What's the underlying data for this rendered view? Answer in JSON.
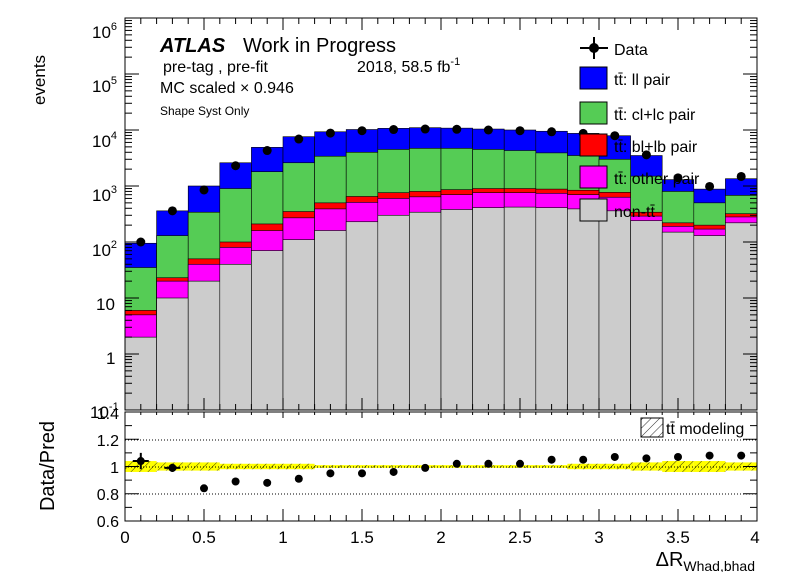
{
  "header": {
    "atlas": "ATLAS",
    "work": "Work in Progress",
    "line2": "pre-tag ,  pre-fit",
    "lumi": "2018, 58.5 fb",
    "lumi_exp": "-1",
    "scale": "MC scaled × 0.946",
    "syst": "Shape Syst Only"
  },
  "axes": {
    "ylabel_top": "events",
    "ylabel_bottom": "Data/Pred",
    "xlabel_main": "ΔR",
    "xlabel_sub": "Whad,bhad"
  },
  "legend": {
    "data": "Data",
    "ll": "tt̄: ll pair",
    "cl": "tt̄: cl+lc pair",
    "bl": "tt̄: bl+lb pair",
    "other": "tt̄: other pair",
    "nontt": "non-tt̄",
    "modeling": "tt̄ modeling"
  },
  "colors": {
    "ll": "#0000ff",
    "cl": "#55cc55",
    "bl": "#ff0000",
    "other": "#ff00ff",
    "nontt": "#cccccc",
    "band": "#ffff00"
  },
  "chart_data": [
    {
      "type": "area",
      "stacked": true,
      "log_y": true,
      "ylabel": "events",
      "ylim": [
        0.1,
        1000000
      ],
      "xlim": [
        0,
        4
      ],
      "y_ticks": [
        "10^-1",
        "1",
        "10",
        "10^2",
        "10^3",
        "10^4",
        "10^5",
        "10^6"
      ],
      "bin_edges": [
        0,
        0.2,
        0.4,
        0.6,
        0.8,
        1.0,
        1.2,
        1.4,
        1.6,
        1.8,
        2.0,
        2.2,
        2.4,
        2.6,
        2.8,
        3.0,
        3.2,
        3.4,
        3.6,
        3.8,
        4.0
      ],
      "series": [
        {
          "name": "non-tt̄",
          "cumulative": [
            2,
            10,
            20,
            40,
            70,
            110,
            160,
            230,
            300,
            340,
            380,
            410,
            420,
            410,
            390,
            360,
            240,
            150,
            130,
            220
          ]
        },
        {
          "name": "tt̄: other pair",
          "cumulative": [
            5,
            20,
            40,
            80,
            160,
            270,
            390,
            510,
            600,
            640,
            700,
            760,
            760,
            740,
            700,
            630,
            290,
            190,
            170,
            280
          ]
        },
        {
          "name": "tt̄: bl+lb pair",
          "cumulative": [
            6,
            23,
            50,
            100,
            210,
            350,
            500,
            650,
            760,
            800,
            860,
            900,
            900,
            880,
            840,
            770,
            340,
            220,
            200,
            320
          ]
        },
        {
          "name": "tt̄: cl+lc pair",
          "cumulative": [
            35,
            130,
            340,
            900,
            1800,
            2600,
            3400,
            4000,
            4500,
            4700,
            4700,
            4500,
            4300,
            3900,
            3500,
            3000,
            1500,
            800,
            500,
            680
          ]
        },
        {
          "name": "tt̄: ll pair",
          "cumulative": [
            95,
            360,
            1000,
            2600,
            4900,
            7600,
            9300,
            10200,
            10700,
            11000,
            10800,
            10400,
            10000,
            9500,
            8700,
            7900,
            3500,
            1300,
            880,
            1350
          ]
        }
      ],
      "data": {
        "name": "Data",
        "x": [
          0.1,
          0.3,
          0.5,
          0.7,
          0.9,
          1.1,
          1.3,
          1.5,
          1.7,
          1.9,
          2.1,
          2.3,
          2.5,
          2.7,
          2.9,
          3.1,
          3.3,
          3.5,
          3.7,
          3.9
        ],
        "y": [
          100,
          360,
          850,
          2300,
          4300,
          6900,
          8800,
          9700,
          10200,
          10400,
          10300,
          10000,
          9700,
          9300,
          8700,
          7900,
          3600,
          1400,
          980,
          1480
        ]
      }
    },
    {
      "type": "scatter",
      "xlabel": "ΔR Whad,bhad",
      "ylabel": "Data/Pred",
      "xlim": [
        0,
        4
      ],
      "ylim": [
        0.6,
        1.4
      ],
      "x_ticks": [
        0,
        0.5,
        1,
        1.5,
        2,
        2.5,
        3,
        3.5,
        4
      ],
      "y_ticks": [
        0.6,
        0.8,
        1,
        1.2,
        1.4
      ],
      "x": [
        0.1,
        0.3,
        0.5,
        0.7,
        0.9,
        1.1,
        1.3,
        1.5,
        1.7,
        1.9,
        2.1,
        2.3,
        2.5,
        2.7,
        2.9,
        3.1,
        3.3,
        3.5,
        3.7,
        3.9
      ],
      "y": [
        1.04,
        0.99,
        0.84,
        0.89,
        0.88,
        0.91,
        0.95,
        0.95,
        0.96,
        0.99,
        1.02,
        1.02,
        1.02,
        1.05,
        1.05,
        1.07,
        1.06,
        1.07,
        1.08,
        1.08
      ],
      "yerr": [
        0.06,
        0.03,
        0,
        0,
        0,
        0,
        0,
        0,
        0,
        0,
        0,
        0,
        0,
        0,
        0,
        0,
        0,
        0,
        0,
        0
      ],
      "band_halfwidth": [
        0.04,
        0.03,
        0.03,
        0.02,
        0.02,
        0.02,
        0.01,
        0.01,
        0.01,
        0.01,
        0.01,
        0.01,
        0.01,
        0.01,
        0.02,
        0.02,
        0.03,
        0.04,
        0.04,
        0.03
      ]
    }
  ]
}
